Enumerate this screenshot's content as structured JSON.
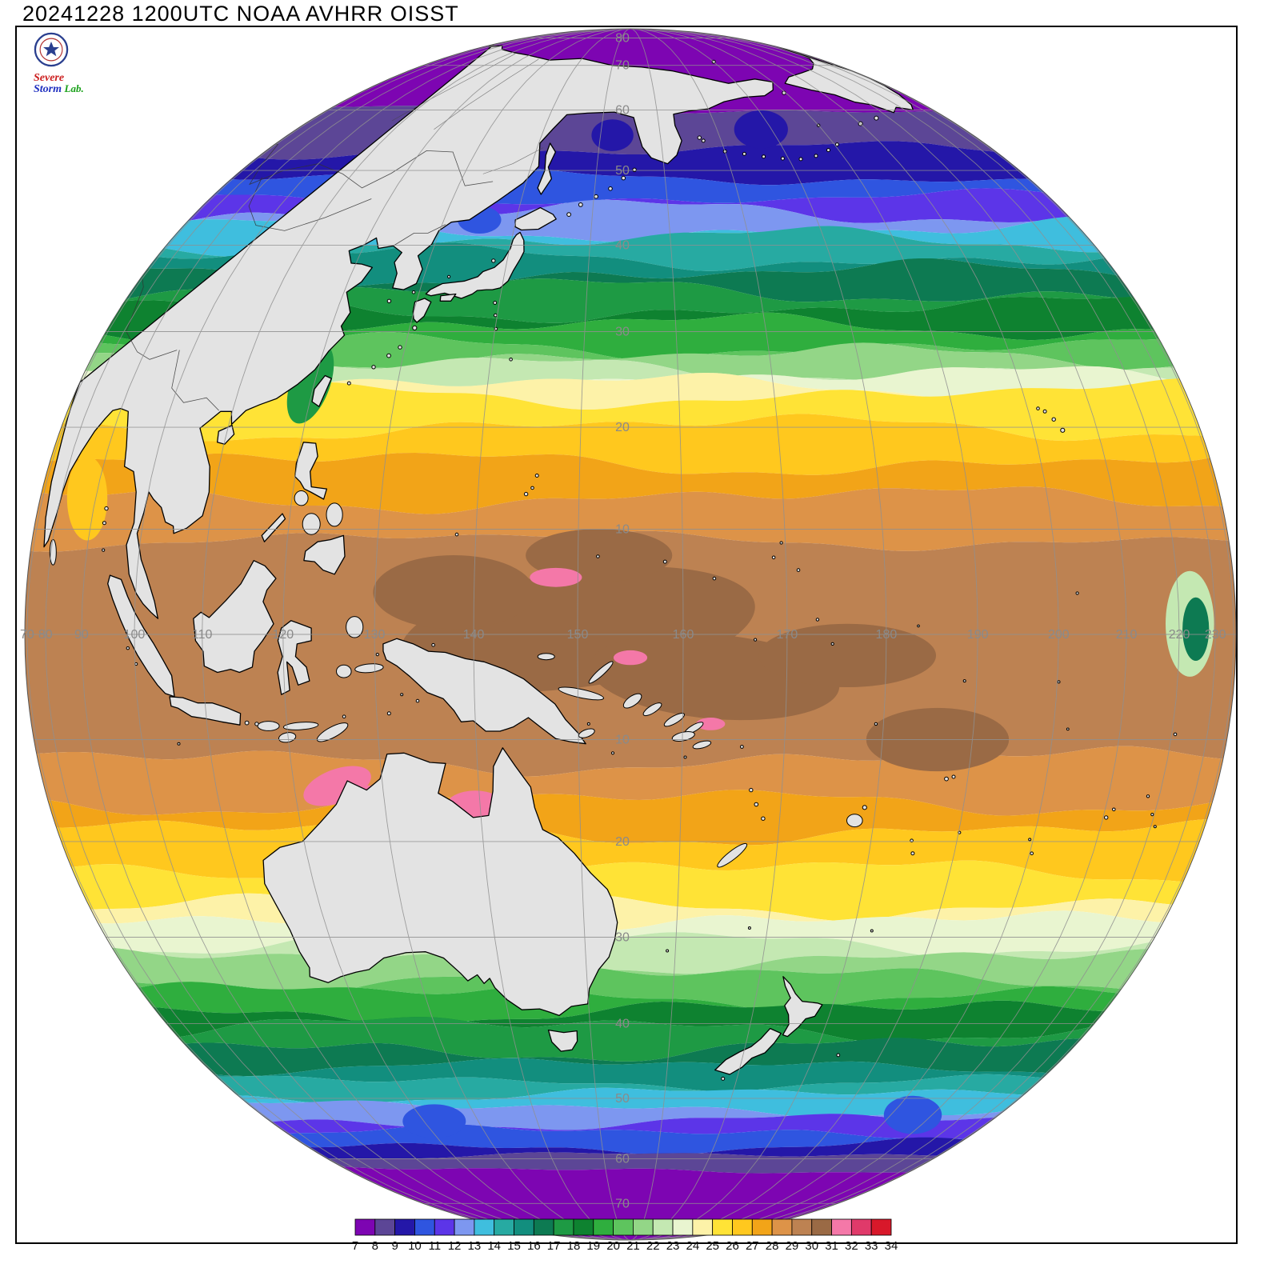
{
  "header": {
    "title": "20241228 1200UTC NOAA AVHRR OISST"
  },
  "logo": {
    "word1": "Severe",
    "word2": "Storm",
    "word3": "Lab."
  },
  "map": {
    "land_color": "#e3e3e3",
    "coast_color": "#000000",
    "grid_color": "#909090",
    "label_color": "#8a8a8a",
    "frame_color": "#000000",
    "lon_ticks": [
      {
        "v": 70,
        "label": "70"
      },
      {
        "v": 80,
        "label": "80"
      },
      {
        "v": 90,
        "label": "90"
      },
      {
        "v": 100,
        "label": "100"
      },
      {
        "v": 110,
        "label": "110"
      },
      {
        "v": 120,
        "label": "120"
      },
      {
        "v": 130,
        "label": "130"
      },
      {
        "v": 140,
        "label": "140"
      },
      {
        "v": 150,
        "label": "150"
      },
      {
        "v": 160,
        "label": "160"
      },
      {
        "v": 170,
        "label": "170"
      },
      {
        "v": 180,
        "label": "180"
      },
      {
        "v": 190,
        "label": "190"
      },
      {
        "v": 200,
        "label": "200"
      },
      {
        "v": 210,
        "label": "210"
      },
      {
        "v": 220,
        "label": "220"
      },
      {
        "v": 230,
        "label": "230"
      }
    ],
    "lat_ticks": [
      {
        "v": 80,
        "label": "80"
      },
      {
        "v": 70,
        "label": "70"
      },
      {
        "v": 60,
        "label": "60"
      },
      {
        "v": 50,
        "label": "50"
      },
      {
        "v": 40,
        "label": "40"
      },
      {
        "v": 30,
        "label": "30"
      },
      {
        "v": 20,
        "label": "20"
      },
      {
        "v": 10,
        "label": "10"
      },
      {
        "v": -10,
        "label": "10"
      },
      {
        "v": -20,
        "label": "20"
      },
      {
        "v": -30,
        "label": "30"
      },
      {
        "v": -40,
        "label": "40"
      },
      {
        "v": -50,
        "label": "50"
      },
      {
        "v": -60,
        "label": "60"
      },
      {
        "v": -70,
        "label": "70"
      }
    ]
  },
  "chart_data": {
    "type": "heatmap",
    "title": "20241228 1200UTC NOAA AVHRR OISST",
    "colorbar": {
      "values": [
        "7",
        "8",
        "9",
        "10",
        "11",
        "12",
        "13",
        "14",
        "15",
        "16",
        "17",
        "18",
        "19",
        "20",
        "21",
        "22",
        "23",
        "24",
        "25",
        "26",
        "27",
        "28",
        "29",
        "30",
        "31",
        "32",
        "33",
        "34"
      ],
      "colors": [
        "#7d05b2",
        "#5c4696",
        "#2417a8",
        "#2f55e0",
        "#5c35e8",
        "#7d97f0",
        "#3fbede",
        "#27aaa2",
        "#128e7e",
        "#0d7a52",
        "#1e9a44",
        "#0e8230",
        "#2fae3e",
        "#5ec45e",
        "#93d687",
        "#c4e8b2",
        "#e9f5d0",
        "#fdf2a8",
        "#ffe336",
        "#ffc81e",
        "#f2a418",
        "#dd9348",
        "#bd8252",
        "#9a6a45",
        "#f478a8",
        "#e03a6a",
        "#d8182a"
      ]
    },
    "zonal_bands_format": "[lat_from,lat_to,color_index]",
    "zonal_bands": [
      [
        90,
        60,
        0
      ],
      [
        60,
        53,
        1
      ],
      [
        53,
        49,
        2
      ],
      [
        49,
        46,
        3
      ],
      [
        46,
        44,
        4
      ],
      [
        44,
        42,
        5
      ],
      [
        42,
        40.5,
        6
      ],
      [
        40.5,
        38.5,
        7
      ],
      [
        38.5,
        36.5,
        8
      ],
      [
        36.5,
        34.5,
        9
      ],
      [
        34.5,
        32.5,
        10
      ],
      [
        32.5,
        30.5,
        11
      ],
      [
        30.5,
        28.5,
        12
      ],
      [
        28.5,
        27.2,
        13
      ],
      [
        27.2,
        26,
        14
      ],
      [
        26,
        25,
        15
      ],
      [
        25,
        24.2,
        16
      ],
      [
        24.2,
        23.4,
        17
      ],
      [
        23.4,
        20,
        18
      ],
      [
        20,
        16.5,
        19
      ],
      [
        16.5,
        13,
        20
      ],
      [
        13,
        9,
        21
      ],
      [
        9,
        -12,
        22
      ],
      [
        -12,
        -16,
        21
      ],
      [
        -16,
        -19,
        20
      ],
      [
        -19,
        -23,
        19
      ],
      [
        -23,
        -26.5,
        18
      ],
      [
        -26.5,
        -28.5,
        17
      ],
      [
        -28.5,
        -30.5,
        16
      ],
      [
        -30.5,
        -32.5,
        15
      ],
      [
        -32.5,
        -34.5,
        14
      ],
      [
        -34.5,
        -36.5,
        13
      ],
      [
        -36.5,
        -38.5,
        12
      ],
      [
        -38.5,
        -40.5,
        11
      ],
      [
        -40.5,
        -43,
        10
      ],
      [
        -43,
        -45.5,
        9
      ],
      [
        -45.5,
        -47.5,
        8
      ],
      [
        -47.5,
        -49.5,
        7
      ],
      [
        -49.5,
        -51.5,
        6
      ],
      [
        -51.5,
        -53.5,
        5
      ],
      [
        -53.5,
        -55.5,
        4
      ],
      [
        -55.5,
        -57.5,
        3
      ],
      [
        -57.5,
        -59.5,
        2
      ],
      [
        -59.5,
        -62,
        1
      ],
      [
        -62,
        -90,
        0
      ]
    ],
    "features_format": "[lon,lat,half_width_deg,half_height_deg,color_index,rotation_deg]",
    "features": [
      [
        150,
        0.5,
        17,
        5.5,
        23,
        -8
      ],
      [
        163,
        -4,
        12,
        4,
        23,
        5
      ],
      [
        138,
        4,
        8,
        3.5,
        23,
        0
      ],
      [
        176,
        -2,
        9,
        3,
        23,
        0
      ],
      [
        152,
        7.5,
        7,
        2.5,
        23,
        0
      ],
      [
        186,
        -10,
        8,
        3,
        23,
        0
      ],
      [
        147.9,
        5.4,
        2.5,
        0.9,
        24,
        0
      ],
      [
        155,
        -2.2,
        1.6,
        0.7,
        24,
        0
      ],
      [
        162.7,
        -8.5,
        1.4,
        0.6,
        24,
        0
      ],
      [
        125,
        -14.5,
        4,
        1.6,
        24,
        -20
      ],
      [
        128.5,
        -15.8,
        3,
        1.3,
        24,
        0
      ],
      [
        139.5,
        -16.5,
        3,
        1.5,
        24,
        0
      ],
      [
        126.8,
        -15.2,
        1.2,
        0.5,
        25,
        0
      ],
      [
        88,
        13,
        5,
        4,
        19,
        0
      ],
      [
        222.5,
        1,
        6,
        5,
        15,
        0
      ],
      [
        224,
        0.5,
        3.5,
        3,
        9,
        0
      ],
      [
        119.5,
        24.5,
        2.5,
        4,
        10,
        20
      ],
      [
        135,
        43.2,
        3,
        1.3,
        3,
        0
      ],
      [
        178,
        56.5,
        5,
        1.8,
        2,
        0
      ],
      [
        152,
        55.5,
        3.5,
        1.5,
        2,
        0
      ],
      [
        205,
        -52.5,
        7,
        1.8,
        3,
        0
      ],
      [
        122,
        -53.5,
        6,
        1.6,
        3,
        0
      ]
    ]
  }
}
